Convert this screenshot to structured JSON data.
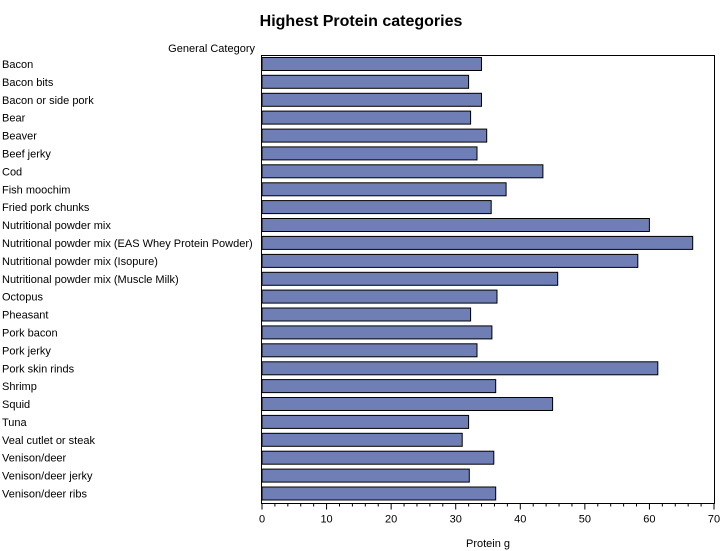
{
  "chart_data": {
    "type": "bar",
    "orientation": "horizontal",
    "title": "Highest Protein categories",
    "category_axis_label": "General Category",
    "xlabel": "Protein g",
    "xlim": [
      0,
      70
    ],
    "xticks": [
      0,
      10,
      20,
      30,
      40,
      50,
      60,
      70
    ],
    "bar_color": "#6F7EB5",
    "categories": [
      "Bacon",
      "Bacon bits",
      "Bacon or side pork",
      "Bear",
      "Beaver",
      "Beef jerky",
      "Cod",
      "Fish moochim",
      "Fried pork chunks",
      "Nutritional powder mix",
      "Nutritional powder mix (EAS Whey Protein Powder)",
      "Nutritional powder mix (Isopure)",
      "Nutritional powder mix (Muscle Milk)",
      "Octopus",
      "Pheasant",
      "Pork bacon",
      "Pork jerky",
      "Pork skin rinds",
      "Shrimp",
      "Squid",
      "Tuna",
      "Veal cutlet or steak",
      "Venison/deer",
      "Venison/deer jerky",
      "Venison/deer ribs"
    ],
    "values": [
      34.0,
      32.0,
      34.0,
      32.3,
      34.8,
      33.3,
      43.5,
      37.8,
      35.5,
      60.0,
      66.7,
      58.2,
      45.8,
      36.4,
      32.3,
      35.6,
      33.3,
      61.3,
      36.2,
      45.0,
      32.0,
      31.0,
      35.9,
      32.1,
      36.2
    ]
  }
}
